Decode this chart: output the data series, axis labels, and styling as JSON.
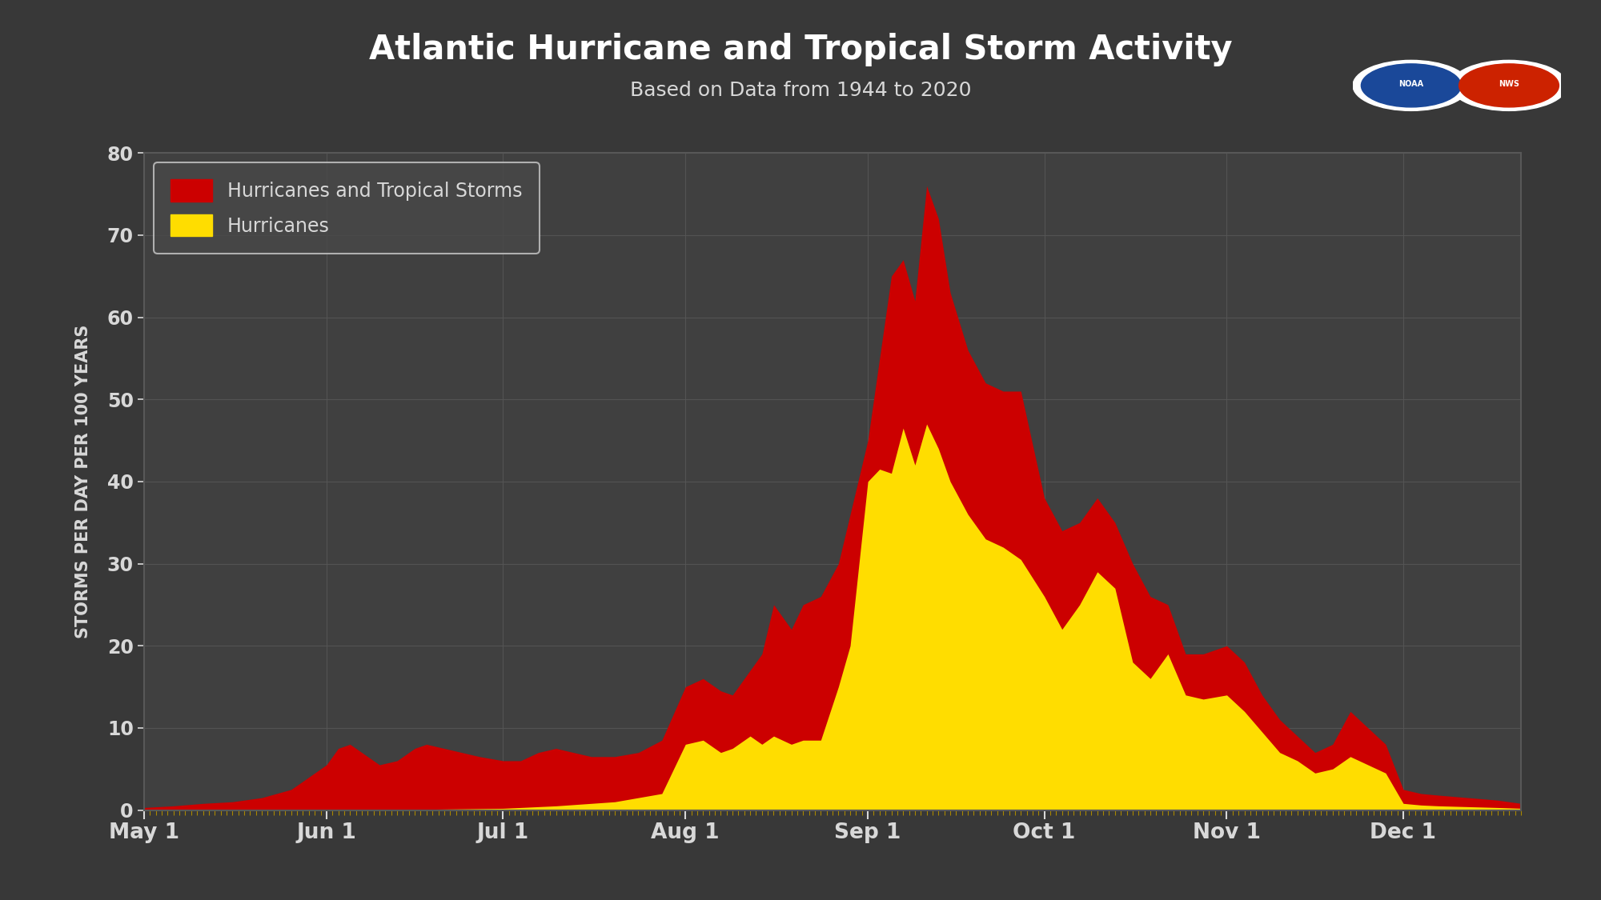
{
  "title": "Atlantic Hurricane and Tropical Storm Activity",
  "subtitle": "Based on Data from 1944 to 2020",
  "ylabel": "STORMS PER DAY PER 100 YEARS",
  "background_color": "#383838",
  "plot_bg_color": "#404040",
  "grid_color": "#585858",
  "text_color": "#d8d8d8",
  "ylim": [
    0,
    80
  ],
  "yticks": [
    0,
    10,
    20,
    30,
    40,
    50,
    60,
    70,
    80
  ],
  "xtick_labels": [
    "May 1",
    "Jun 1",
    "Jul 1",
    "Aug 1",
    "Sep 1",
    "Oct 1",
    "Nov 1",
    "Dec 1"
  ],
  "red_color": "#cc0000",
  "yellow_color": "#ffdd00",
  "legend_label_red": "Hurricanes and Tropical Storms",
  "legend_label_yellow": "Hurricanes",
  "month_ticks": [
    0,
    31,
    61,
    92,
    123,
    153,
    184,
    214
  ]
}
